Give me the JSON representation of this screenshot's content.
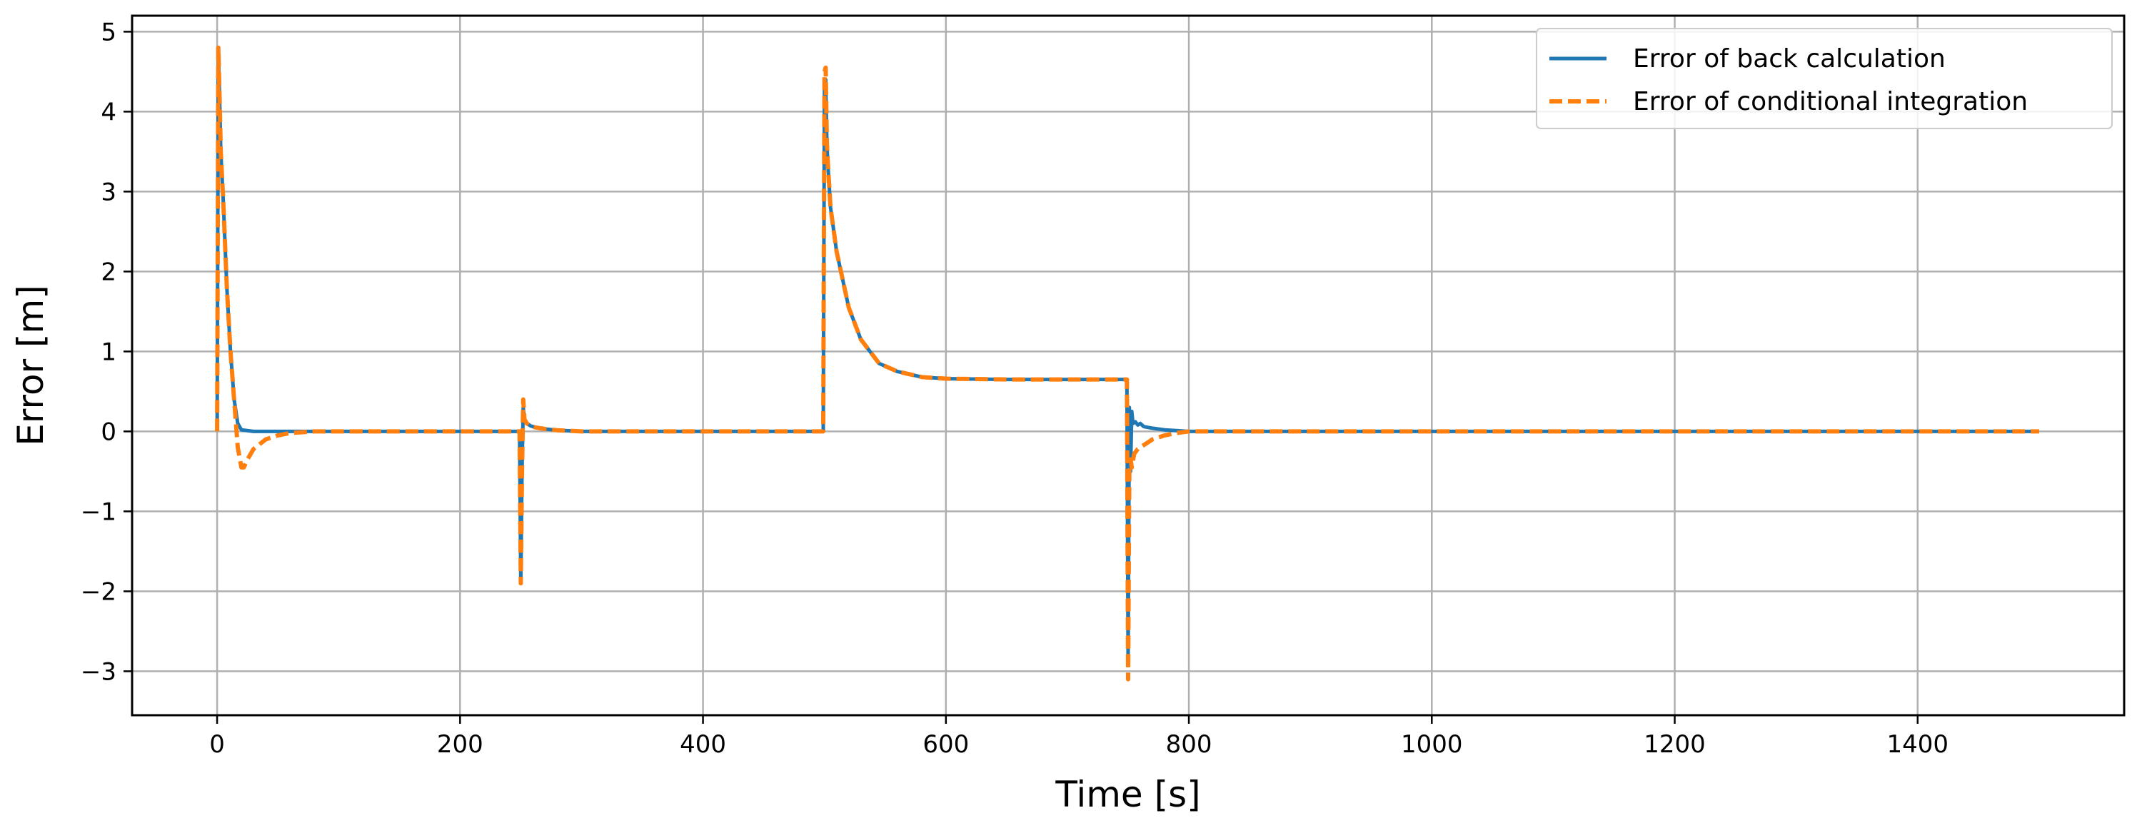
{
  "chart_data": {
    "type": "line",
    "xlabel": "Time [s]",
    "ylabel": "Error [m]",
    "xlim": [
      -70,
      1570
    ],
    "ylim": [
      -3.55,
      5.2
    ],
    "xticks": [
      0,
      200,
      400,
      600,
      800,
      1000,
      1200,
      1400
    ],
    "yticks": [
      -3,
      -2,
      -1,
      0,
      1,
      2,
      3,
      4,
      5
    ],
    "xtick_labels": [
      "0",
      "200",
      "400",
      "600",
      "800",
      "1000",
      "1200",
      "1400"
    ],
    "ytick_labels": [
      "−3",
      "−2",
      "−1",
      "0",
      "1",
      "2",
      "3",
      "4",
      "5"
    ],
    "grid": true,
    "legend_position": "top-right",
    "series": [
      {
        "name": "Error of back calculation",
        "color": "#1f77b4",
        "style": "solid",
        "x": [
          0,
          1,
          2,
          3,
          5,
          8,
          11,
          14,
          17,
          20,
          30,
          50,
          100,
          200,
          249,
          250,
          251,
          252,
          253,
          255,
          258,
          262,
          270,
          280,
          300,
          400,
          499,
          500,
          501,
          502,
          503,
          505,
          510,
          520,
          530,
          545,
          560,
          580,
          600,
          650,
          700,
          749,
          750,
          751,
          752,
          753,
          754,
          756,
          758,
          760,
          763,
          770,
          780,
          800,
          1000,
          1200,
          1500
        ],
        "y": [
          0,
          4.8,
          4.2,
          3.5,
          2.9,
          1.8,
          1.0,
          0.4,
          0.1,
          0.02,
          0,
          0,
          0,
          0,
          0,
          -1.9,
          -0.5,
          0.3,
          0.15,
          0.1,
          0.07,
          0.05,
          0.03,
          0.015,
          0,
          0,
          0,
          4.3,
          4.4,
          3.6,
          3.3,
          2.8,
          2.25,
          1.55,
          1.15,
          0.85,
          0.75,
          0.68,
          0.66,
          0.65,
          0.65,
          0.65,
          -2.9,
          0.3,
          -0.5,
          0.25,
          0.1,
          0.12,
          0.08,
          0.1,
          0.06,
          0.04,
          0.02,
          0,
          0,
          0,
          0
        ]
      },
      {
        "name": "Error of conditional integration",
        "color": "#ff7f0e",
        "style": "dashed",
        "x": [
          0,
          1,
          2,
          3,
          5,
          8,
          11,
          14,
          17,
          20,
          22,
          25,
          30,
          40,
          50,
          60,
          80,
          100,
          200,
          249,
          250,
          251,
          252,
          253,
          255,
          258,
          262,
          270,
          280,
          300,
          400,
          499,
          500,
          501,
          502,
          503,
          505,
          510,
          520,
          530,
          545,
          560,
          580,
          600,
          650,
          700,
          749,
          750,
          751,
          752,
          753,
          755,
          758,
          762,
          770,
          780,
          790,
          800,
          1000,
          1200,
          1500
        ],
        "y": [
          0,
          4.8,
          4.2,
          3.5,
          2.9,
          1.8,
          1.0,
          0.4,
          -0.2,
          -0.45,
          -0.45,
          -0.35,
          -0.22,
          -0.1,
          -0.05,
          -0.02,
          0,
          0,
          0,
          0,
          -1.9,
          -0.5,
          0.4,
          0.15,
          0.1,
          0.07,
          0.05,
          0.03,
          0.015,
          0,
          0,
          0,
          4.5,
          4.55,
          3.6,
          3.3,
          2.8,
          2.25,
          1.55,
          1.15,
          0.85,
          0.75,
          0.68,
          0.66,
          0.65,
          0.65,
          0.65,
          -3.1,
          -0.5,
          -0.35,
          -0.45,
          -0.28,
          -0.22,
          -0.18,
          -0.1,
          -0.05,
          -0.02,
          0,
          0,
          0,
          0
        ]
      }
    ]
  }
}
